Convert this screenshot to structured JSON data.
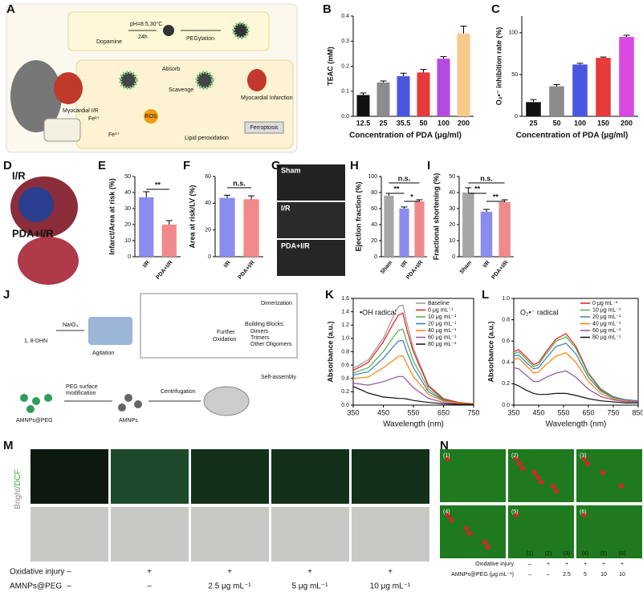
{
  "panels": [
    "A",
    "B",
    "C",
    "D",
    "E",
    "F",
    "G",
    "H",
    "I",
    "J",
    "K",
    "L",
    "M",
    "N"
  ],
  "diagram_a": {
    "dopamine": "Dopamine",
    "condition": "pH=8.5,30°C",
    "time": "24h",
    "pegylation": "PEGylation",
    "absorb": "Absorb",
    "scavenge": "Scavenge",
    "model": "Myocardial I/R",
    "fe2": "Fe²⁺",
    "fe3": "Fe³⁺",
    "ros": "ROS",
    "lipid": "Lipid peroxidation",
    "infarction": "Myocardial Infarction",
    "ferroptosis": "Ferroptosis"
  },
  "diagram_d": {
    "top": "I/R",
    "bottom": "PDA+I/R"
  },
  "diagram_g": {
    "rows": [
      "Sham",
      "I/R",
      "PDA+I/R"
    ]
  },
  "diagram_j": {
    "monomer": "1, 8-DHN",
    "oxidant": "NaIO₄",
    "agitation": "Agitation",
    "dimerization": "Dimerization",
    "further": "Further",
    "oxidation": "Oxidation",
    "blocks": "Building Blocks:",
    "dimers": "Dimers",
    "trimers": "Trimers",
    "oligomers": "Other Oligomers",
    "self_assembly": "Self-assembly",
    "centrifugation": "Centrifugation",
    "amnps": "AMNPs",
    "peg1": "PEG surface",
    "peg2": "modification",
    "amnps_peg": "AMNPs@PEG"
  },
  "diagram_m": {
    "channel_a": "Bright",
    "channel_b": "/DCF",
    "row1_label": "Oxidative injury",
    "row1": [
      "–",
      "+",
      "+",
      "+",
      "+"
    ],
    "row2_label": "AMNPs@PEG",
    "row2": [
      "–",
      "–",
      "2.5 μg mL⁻¹",
      "5 μg mL⁻¹",
      "10 μg mL⁻¹"
    ]
  },
  "diagram_n": {
    "tiles": [
      "(1)",
      "(2)",
      "(3)",
      "(4)",
      "(5)",
      "(6)"
    ],
    "row1_label": "Oxidative injury",
    "row1": [
      "–",
      "+",
      "+",
      "+",
      "+",
      "+"
    ],
    "row2_label": "AMNPs@PEG (μg mL⁻¹)",
    "row2": [
      "–",
      "–",
      "2.5",
      "5",
      "10",
      "10"
    ]
  },
  "chart_data": [
    {
      "type": "bar",
      "ylabel": "TEAC (mM)",
      "xlabel": "Concentration of PDA (μg/ml)",
      "categories": [
        "12.5",
        "25",
        "35.5",
        "50",
        "100",
        "200"
      ],
      "values": [
        0.085,
        0.135,
        0.16,
        0.175,
        0.23,
        0.33
      ],
      "errors": [
        0.008,
        0.006,
        0.012,
        0.012,
        0.008,
        0.03
      ],
      "colors": [
        "#111111",
        "#8c8c8c",
        "#4a55e0",
        "#e83a3a",
        "#b54ae0",
        "#f7c98a"
      ],
      "ylim": [
        0,
        0.4
      ],
      "yticks": [
        {
          "value": 0,
          "label": "0.0"
        },
        0.1,
        0.2,
        0.3,
        0.4
      ]
    },
    {
      "type": "bar",
      "ylabel": "O₂•⁻ inhibition rate (%)",
      "xlabel": "Concentration of PDA (μg/ml)",
      "categories": [
        "25",
        "50",
        "100",
        "150",
        "200"
      ],
      "values": [
        17,
        36,
        62,
        70,
        95
      ],
      "errors": [
        3,
        2,
        1.5,
        1,
        2
      ],
      "colors": [
        "#111111",
        "#8c8c8c",
        "#4a55e0",
        "#e83a3a",
        "#d94ae0"
      ],
      "ylim": [
        0,
        120
      ],
      "yticks": [
        0,
        50,
        100
      ]
    },
    {
      "type": "bar",
      "ylabel": "Infarct/Area at risk (%)",
      "categories": [
        "I/R",
        "PDA+I/R"
      ],
      "values": [
        37,
        20
      ],
      "errors": [
        3.5,
        2.5
      ],
      "colors": [
        "#8a8cf0",
        "#f08a8a"
      ],
      "ylim": [
        0,
        50
      ],
      "yticks": [
        0,
        10,
        20,
        30,
        40,
        50
      ],
      "annotations": [
        "**"
      ]
    },
    {
      "type": "bar",
      "ylabel": "Area at risk/LV (%)",
      "categories": [
        "I/R",
        "PDA+I/R"
      ],
      "values": [
        44,
        43
      ],
      "errors": [
        2,
        2.5
      ],
      "colors": [
        "#8a8cf0",
        "#f08a8a"
      ],
      "ylim": [
        0,
        60
      ],
      "yticks": [
        0,
        20,
        40,
        60
      ],
      "annotations": [
        "n.s."
      ]
    },
    {
      "type": "bar",
      "ylabel": "Ejection fraction (%)",
      "categories": [
        "Sham",
        "I/R",
        "PDA+I/R"
      ],
      "values": [
        76,
        60,
        69
      ],
      "errors": [
        3,
        2,
        2
      ],
      "colors": [
        "#a6a6a6",
        "#8a8cf0",
        "#f08a8a"
      ],
      "ylim": [
        0,
        100
      ],
      "yticks": [
        0,
        20,
        40,
        60,
        80,
        100
      ],
      "annotations": [
        "n.s.",
        "**",
        "*"
      ]
    },
    {
      "type": "bar",
      "ylabel": "Fractional shortening (%)",
      "categories": [
        "Sham",
        "I/R",
        "PDA+I/R"
      ],
      "values": [
        40,
        28,
        34
      ],
      "errors": [
        3,
        1.5,
        1.5
      ],
      "colors": [
        "#a6a6a6",
        "#8a8cf0",
        "#f08a8a"
      ],
      "ylim": [
        0,
        50
      ],
      "yticks": [
        0,
        10,
        20,
        30,
        40,
        50
      ],
      "annotations": [
        "n.s.",
        "**",
        "**"
      ]
    },
    {
      "type": "line",
      "annotation": "•OH radical",
      "ylabel": "Absorbance (a.u.)",
      "xlabel": "Wavelength (nm)",
      "xlim": [
        350,
        750
      ],
      "xticks": [
        350,
        450,
        550,
        650,
        750
      ],
      "ylim": [
        0,
        1.6
      ],
      "yticks": [
        {
          "value": 0,
          "label": "0.0"
        },
        0.2,
        0.4,
        0.6,
        0.8,
        {
          "value": 1,
          "label": "1.0"
        },
        1.2,
        1.4,
        1.6
      ],
      "x": [
        350,
        400,
        450,
        480,
        500,
        515,
        530,
        550,
        600,
        650,
        700,
        750
      ],
      "series": [
        {
          "name": "Baseline",
          "color": "#999999",
          "values": [
            0.55,
            0.68,
            1.0,
            1.3,
            1.48,
            1.5,
            1.2,
            0.85,
            0.3,
            0.1,
            0.04,
            0.02
          ]
        },
        {
          "name": "0 μg mL⁻¹",
          "color": "#e41a1c",
          "values": [
            0.52,
            0.64,
            0.95,
            1.2,
            1.35,
            1.38,
            1.1,
            0.8,
            0.28,
            0.09,
            0.04,
            0.02
          ]
        },
        {
          "name": "10 μg mL⁻¹",
          "color": "#4daf4a",
          "values": [
            0.48,
            0.56,
            0.8,
            1.0,
            1.12,
            1.14,
            0.92,
            0.66,
            0.24,
            0.08,
            0.03,
            0.02
          ]
        },
        {
          "name": "20 μg mL⁻¹",
          "color": "#377eb8",
          "values": [
            0.45,
            0.5,
            0.7,
            0.86,
            0.96,
            0.97,
            0.78,
            0.56,
            0.2,
            0.07,
            0.03,
            0.02
          ]
        },
        {
          "name": "40 μg mL⁻¹",
          "color": "#ff7f00",
          "values": [
            0.4,
            0.42,
            0.56,
            0.66,
            0.73,
            0.74,
            0.6,
            0.43,
            0.16,
            0.06,
            0.03,
            0.02
          ]
        },
        {
          "name": "60 μg mL⁻¹",
          "color": "#984ea3",
          "values": [
            0.33,
            0.3,
            0.35,
            0.4,
            0.43,
            0.43,
            0.36,
            0.26,
            0.1,
            0.04,
            0.02,
            0.01
          ]
        },
        {
          "name": "80 μg mL⁻¹",
          "color": "#111111",
          "values": [
            0.28,
            0.18,
            0.12,
            0.11,
            0.1,
            0.1,
            0.09,
            0.07,
            0.04,
            0.02,
            0.01,
            0.01
          ]
        }
      ]
    },
    {
      "type": "line",
      "annotation": "O₂•⁻ radical",
      "ylabel": "Absorbance (a.u.)",
      "xlabel": "Wavelength (nm)",
      "xlim": [
        350,
        850
      ],
      "xticks": [
        350,
        450,
        550,
        650,
        750,
        850
      ],
      "ylim": [
        0,
        1
      ],
      "yticks": [
        {
          "value": 0,
          "label": "0.0"
        },
        0.2,
        0.4,
        0.6,
        0.8,
        {
          "value": 1,
          "label": "1.0"
        }
      ],
      "x": [
        350,
        370,
        400,
        430,
        450,
        480,
        520,
        560,
        600,
        650,
        700,
        750,
        800,
        850
      ],
      "series": [
        {
          "name": "0 μg mL⁻¹",
          "color": "#e41a1c",
          "values": [
            0.5,
            0.52,
            0.45,
            0.38,
            0.4,
            0.5,
            0.62,
            0.67,
            0.55,
            0.3,
            0.15,
            0.08,
            0.05,
            0.04
          ]
        },
        {
          "name": "10 μg mL⁻¹",
          "color": "#4daf4a",
          "values": [
            0.48,
            0.5,
            0.43,
            0.36,
            0.38,
            0.48,
            0.6,
            0.64,
            0.53,
            0.29,
            0.14,
            0.08,
            0.05,
            0.04
          ]
        },
        {
          "name": "20 μg mL⁻¹",
          "color": "#377eb8",
          "values": [
            0.46,
            0.47,
            0.4,
            0.34,
            0.35,
            0.44,
            0.55,
            0.58,
            0.48,
            0.26,
            0.13,
            0.07,
            0.05,
            0.04
          ]
        },
        {
          "name": "40 μg mL⁻¹",
          "color": "#ff7f00",
          "values": [
            0.43,
            0.44,
            0.37,
            0.3,
            0.31,
            0.38,
            0.46,
            0.49,
            0.4,
            0.22,
            0.11,
            0.06,
            0.04,
            0.03
          ]
        },
        {
          "name": "60 μg mL⁻¹",
          "color": "#984ea3",
          "values": [
            0.35,
            0.34,
            0.28,
            0.22,
            0.22,
            0.26,
            0.3,
            0.32,
            0.26,
            0.15,
            0.08,
            0.05,
            0.03,
            0.03
          ]
        },
        {
          "name": "80 μg mL⁻¹",
          "color": "#111111",
          "values": [
            0.2,
            0.18,
            0.14,
            0.11,
            0.1,
            0.1,
            0.11,
            0.11,
            0.09,
            0.06,
            0.04,
            0.03,
            0.02,
            0.02
          ]
        }
      ]
    }
  ]
}
